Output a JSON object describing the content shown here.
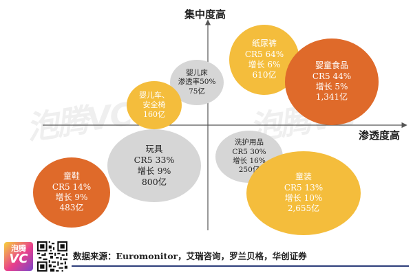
{
  "axes": {
    "y_title": "集中度高",
    "x_title": "渗透度高"
  },
  "colors": {
    "orange": "#df6a2a",
    "yellow": "#f4bd3c",
    "grey": "#d6d6d6",
    "axis": "#555555"
  },
  "bubbles": [
    {
      "id": "diapers",
      "lines": [
        "纸尿裤",
        "CR5 64%",
        "增长 6%",
        "610亿"
      ],
      "color": "yellow"
    },
    {
      "id": "baby-food",
      "lines": [
        "婴童食品",
        "CR5 44%",
        "增长 5%",
        "1,341亿"
      ],
      "color": "orange"
    },
    {
      "id": "crib",
      "lines": [
        "婴儿床",
        "渗透率50%",
        "75亿"
      ],
      "color": "grey"
    },
    {
      "id": "stroller",
      "lines": [
        "婴儿车、",
        "安全椅",
        "160亿"
      ],
      "color": "yellow"
    },
    {
      "id": "toys",
      "lines": [
        "玩具",
        "CR5 33%",
        "增长 9%",
        "800亿"
      ],
      "color": "grey"
    },
    {
      "id": "care",
      "lines": [
        "洗护用品",
        "CR5 30%",
        "增长 16%",
        "250亿"
      ],
      "color": "grey"
    },
    {
      "id": "shoes",
      "lines": [
        "童鞋",
        "CR5 14%",
        "增长 9%",
        "483亿"
      ],
      "color": "orange"
    },
    {
      "id": "apparel",
      "lines": [
        "童装",
        "CR5 13%",
        "增长 10%",
        "2,655亿"
      ],
      "color": "yellow"
    }
  ],
  "watermark": "泡腾VC",
  "footer": {
    "logo_top": "泡腾",
    "logo_bottom": "VC",
    "source": "数据来源：Euromonitor，艾瑞咨询，罗兰贝格，华创证券"
  }
}
